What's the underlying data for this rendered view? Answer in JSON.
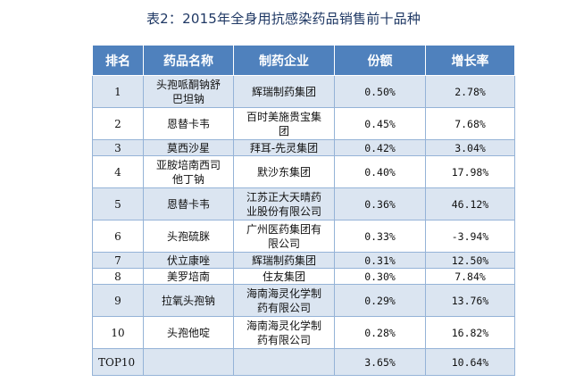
{
  "title": "表2：2015年全身用抗感染药品销售前十品种",
  "table": {
    "headers": [
      "排名",
      "药品名称",
      "制药企业",
      "份额",
      "增长率"
    ],
    "rows": [
      {
        "rank": "1",
        "drug_lines": [
          "头孢哌酮钠舒",
          "巴坦钠"
        ],
        "company_lines": [
          "辉瑞制药集团"
        ],
        "share": "0.50%",
        "growth": "2.78%"
      },
      {
        "rank": "2",
        "drug_lines": [
          "恩替卡韦"
        ],
        "company_lines": [
          "百时美施贵宝集",
          "团"
        ],
        "share": "0.45%",
        "growth": "7.68%"
      },
      {
        "rank": "3",
        "drug_lines": [
          "莫西沙星"
        ],
        "company_lines": [
          "拜耳-先灵集团"
        ],
        "share": "0.42%",
        "growth": "3.04%"
      },
      {
        "rank": "4",
        "drug_lines": [
          "亚胺培南西司",
          "他丁钠"
        ],
        "company_lines": [
          "默沙东集团"
        ],
        "share": "0.40%",
        "growth": "17.98%"
      },
      {
        "rank": "5",
        "drug_lines": [
          "恩替卡韦"
        ],
        "company_lines": [
          "江苏正大天晴药",
          "业股份有限公司"
        ],
        "share": "0.36%",
        "growth": "46.12%"
      },
      {
        "rank": "6",
        "drug_lines": [
          "头孢硫脒"
        ],
        "company_lines": [
          "广州医药集团有",
          "限公司"
        ],
        "share": "0.33%",
        "growth": "-3.94%"
      },
      {
        "rank": "7",
        "drug_lines": [
          "伏立康唑"
        ],
        "company_lines": [
          "辉瑞制药集团"
        ],
        "share": "0.31%",
        "growth": "12.50%"
      },
      {
        "rank": "8",
        "drug_lines": [
          "美罗培南"
        ],
        "company_lines": [
          "住友集团"
        ],
        "share": "0.30%",
        "growth": "7.84%"
      },
      {
        "rank": "9",
        "drug_lines": [
          "拉氧头孢钠"
        ],
        "company_lines": [
          "海南海灵化学制",
          "药有限公司"
        ],
        "share": "0.29%",
        "growth": "13.76%"
      },
      {
        "rank": "10",
        "drug_lines": [
          "头孢他啶"
        ],
        "company_lines": [
          "海南海灵化学制",
          "药有限公司"
        ],
        "share": "0.28%",
        "growth": "16.82%"
      }
    ],
    "total": {
      "rank": "TOP10",
      "drug": "",
      "company": "",
      "share": "3.65%",
      "growth": "10.64%"
    }
  },
  "colors": {
    "header_bg": "#4f81bd",
    "header_text": "#ffffff",
    "band_bg": "#dbe5f1",
    "border": "#95b3d7",
    "title_text": "#1f3864"
  }
}
